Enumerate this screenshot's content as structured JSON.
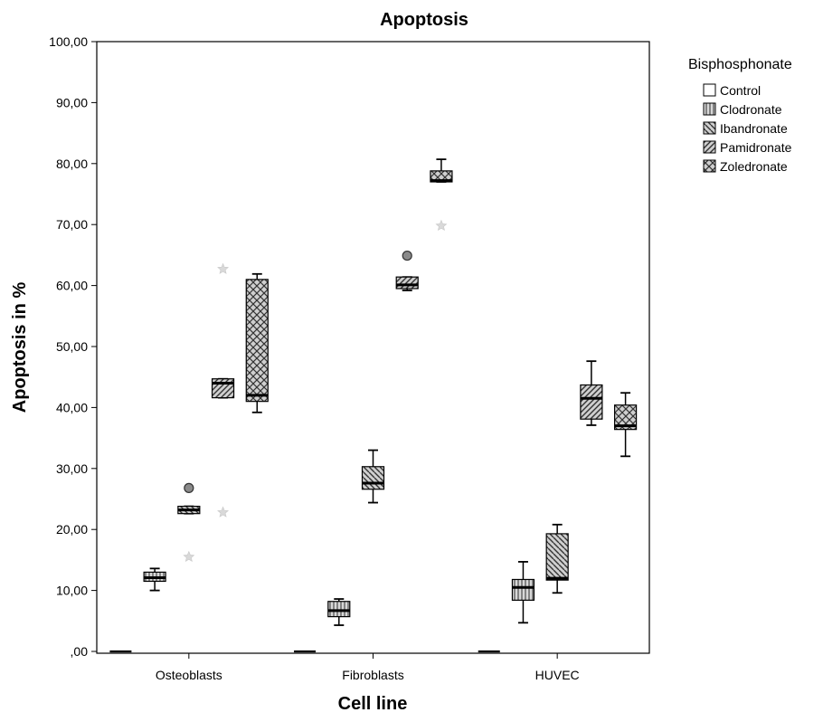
{
  "chart_data": {
    "type": "box",
    "title": "Apoptosis",
    "xlabel": "Cell line",
    "ylabel": "Apoptosis in %",
    "ylim": [
      0,
      100
    ],
    "yticks": [
      0,
      10,
      20,
      30,
      40,
      50,
      60,
      70,
      80,
      90,
      100
    ],
    "ytick_labels": [
      ",00",
      "10,00",
      "20,00",
      "30,00",
      "40,00",
      "50,00",
      "60,00",
      "70,00",
      "80,00",
      "90,00",
      "100,00"
    ],
    "categories": [
      "Osteoblasts",
      "Fibroblasts",
      "HUVEC"
    ],
    "legend": {
      "title": "Bisphosphonate",
      "position": "right"
    },
    "series": [
      {
        "name": "Control",
        "pattern": "none",
        "boxes": [
          {
            "whisker_low": 0,
            "q1": 0,
            "median": 0,
            "q3": 0,
            "whisker_high": 0,
            "outliers": [],
            "extremes": []
          },
          {
            "whisker_low": 0,
            "q1": 0,
            "median": 0,
            "q3": 0,
            "whisker_high": 0,
            "outliers": [],
            "extremes": []
          },
          {
            "whisker_low": 0,
            "q1": 0,
            "median": 0,
            "q3": 0,
            "whisker_high": 0,
            "outliers": [],
            "extremes": []
          }
        ]
      },
      {
        "name": "Clodronate",
        "pattern": "vertical",
        "boxes": [
          {
            "whisker_low": 10.0,
            "q1": 11.5,
            "median": 12.1,
            "q3": 13.0,
            "whisker_high": 13.6,
            "outliers": [],
            "extremes": []
          },
          {
            "whisker_low": 4.3,
            "q1": 5.7,
            "median": 6.7,
            "q3": 8.2,
            "whisker_high": 8.6,
            "outliers": [],
            "extremes": []
          },
          {
            "whisker_low": 4.7,
            "q1": 8.4,
            "median": 10.5,
            "q3": 11.8,
            "whisker_high": 14.7,
            "outliers": [],
            "extremes": []
          }
        ]
      },
      {
        "name": "Ibandronate",
        "pattern": "diag-back",
        "boxes": [
          {
            "whisker_low": 22.6,
            "q1": 22.6,
            "median": 23.2,
            "q3": 23.8,
            "whisker_high": 23.8,
            "outliers": [
              26.8
            ],
            "extremes": [
              15.5
            ]
          },
          {
            "whisker_low": 24.4,
            "q1": 26.6,
            "median": 27.6,
            "q3": 30.3,
            "whisker_high": 33.0,
            "outliers": [],
            "extremes": []
          },
          {
            "whisker_low": 9.6,
            "q1": 11.7,
            "median": 12.0,
            "q3": 19.3,
            "whisker_high": 20.8,
            "outliers": [],
            "extremes": []
          }
        ]
      },
      {
        "name": "Pamidronate",
        "pattern": "diag-fwd",
        "boxes": [
          {
            "whisker_low": 41.6,
            "q1": 41.6,
            "median": 44.0,
            "q3": 44.7,
            "whisker_high": 44.7,
            "outliers": [],
            "extremes": [
              22.8,
              62.7
            ]
          },
          {
            "whisker_low": 59.2,
            "q1": 59.5,
            "median": 60.1,
            "q3": 61.4,
            "whisker_high": 61.4,
            "outliers": [
              64.9
            ],
            "extremes": []
          },
          {
            "whisker_low": 37.1,
            "q1": 38.1,
            "median": 41.5,
            "q3": 43.7,
            "whisker_high": 47.6,
            "outliers": [],
            "extremes": []
          }
        ]
      },
      {
        "name": "Zoledronate",
        "pattern": "crosshatch",
        "boxes": [
          {
            "whisker_low": 39.2,
            "q1": 41.0,
            "median": 42.0,
            "q3": 61.0,
            "whisker_high": 61.9,
            "outliers": [],
            "extremes": []
          },
          {
            "whisker_low": 77.0,
            "q1": 77.0,
            "median": 77.2,
            "q3": 78.8,
            "whisker_high": 80.7,
            "outliers": [],
            "extremes": [
              69.8
            ]
          },
          {
            "whisker_low": 32.0,
            "q1": 36.4,
            "median": 37.0,
            "q3": 40.4,
            "whisker_high": 42.4,
            "outliers": [],
            "extremes": []
          }
        ]
      }
    ]
  }
}
